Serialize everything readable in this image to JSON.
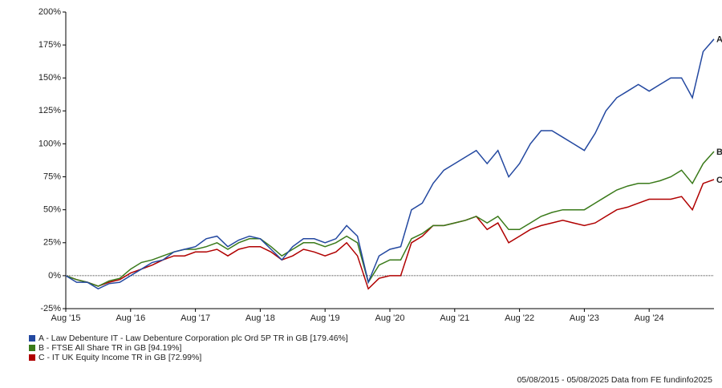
{
  "chart_data": {
    "type": "line",
    "categories": [
      "Aug '15",
      null,
      null,
      null,
      null,
      null,
      "Aug '16",
      null,
      null,
      null,
      null,
      null,
      "Aug '17",
      null,
      null,
      null,
      null,
      null,
      "Aug '18",
      null,
      null,
      null,
      null,
      null,
      "Aug '19",
      null,
      null,
      null,
      null,
      null,
      "Aug '20",
      null,
      null,
      null,
      null,
      null,
      "Aug '21",
      null,
      null,
      null,
      null,
      null,
      "Aug '22",
      null,
      null,
      null,
      null,
      null,
      "Aug '23",
      null,
      null,
      null,
      null,
      null,
      "Aug '24",
      null,
      null,
      null,
      null,
      null,
      null
    ],
    "series": [
      {
        "name": "A - Law Debenture IT - Law Debenture Corporation plc Ord 5P TR in GB [179.46%]",
        "label": "A",
        "color": "#2348a0",
        "values": [
          0,
          -5,
          -5,
          -10,
          -6,
          -5,
          0,
          5,
          10,
          12,
          18,
          20,
          22,
          28,
          30,
          22,
          27,
          30,
          28,
          20,
          12,
          22,
          28,
          28,
          25,
          28,
          38,
          30,
          -5,
          15,
          20,
          22,
          50,
          55,
          70,
          80,
          85,
          90,
          95,
          85,
          95,
          75,
          85,
          100,
          110,
          110,
          105,
          100,
          95,
          108,
          125,
          135,
          140,
          145,
          140,
          145,
          150,
          150,
          135,
          170,
          179.46
        ]
      },
      {
        "name": "B - FTSE All Share TR in GB [94.19%]",
        "label": "B",
        "color": "#3a7a1a",
        "values": [
          0,
          -3,
          -5,
          -8,
          -4,
          -2,
          5,
          10,
          12,
          15,
          18,
          20,
          20,
          22,
          25,
          20,
          25,
          28,
          28,
          22,
          15,
          20,
          25,
          25,
          22,
          25,
          30,
          25,
          -5,
          8,
          12,
          12,
          28,
          32,
          38,
          38,
          40,
          42,
          45,
          40,
          45,
          35,
          35,
          40,
          45,
          48,
          50,
          50,
          50,
          55,
          60,
          65,
          68,
          70,
          70,
          72,
          75,
          80,
          70,
          85,
          94.19
        ]
      },
      {
        "name": "C - IT UK Equity Income TR in GB [72.99%]",
        "label": "C",
        "color": "#b00000",
        "values": [
          0,
          -3,
          -5,
          -8,
          -5,
          -3,
          2,
          5,
          8,
          12,
          15,
          15,
          18,
          18,
          20,
          15,
          20,
          22,
          22,
          18,
          12,
          15,
          20,
          18,
          15,
          18,
          25,
          15,
          -10,
          -2,
          0,
          0,
          25,
          30,
          38,
          38,
          40,
          42,
          45,
          35,
          40,
          25,
          30,
          35,
          38,
          40,
          42,
          40,
          38,
          40,
          45,
          50,
          52,
          55,
          58,
          58,
          58,
          60,
          50,
          70,
          72.99
        ]
      }
    ],
    "ylim": [
      -25,
      200
    ],
    "yticks": [
      {
        "value": -25,
        "label": "-25%"
      },
      {
        "value": 0,
        "label": "0%"
      },
      {
        "value": 25,
        "label": "25%"
      },
      {
        "value": 50,
        "label": "50%"
      },
      {
        "value": 75,
        "label": "75%"
      },
      {
        "value": 100,
        "label": "100%"
      },
      {
        "value": 125,
        "label": "125%"
      },
      {
        "value": 150,
        "label": "150%"
      },
      {
        "value": 175,
        "label": "175%"
      },
      {
        "value": 200,
        "label": "200%"
      }
    ],
    "zero_line": true,
    "footer": "05/08/2015 - 05/08/2025 Data from FE fundinfo2025"
  }
}
